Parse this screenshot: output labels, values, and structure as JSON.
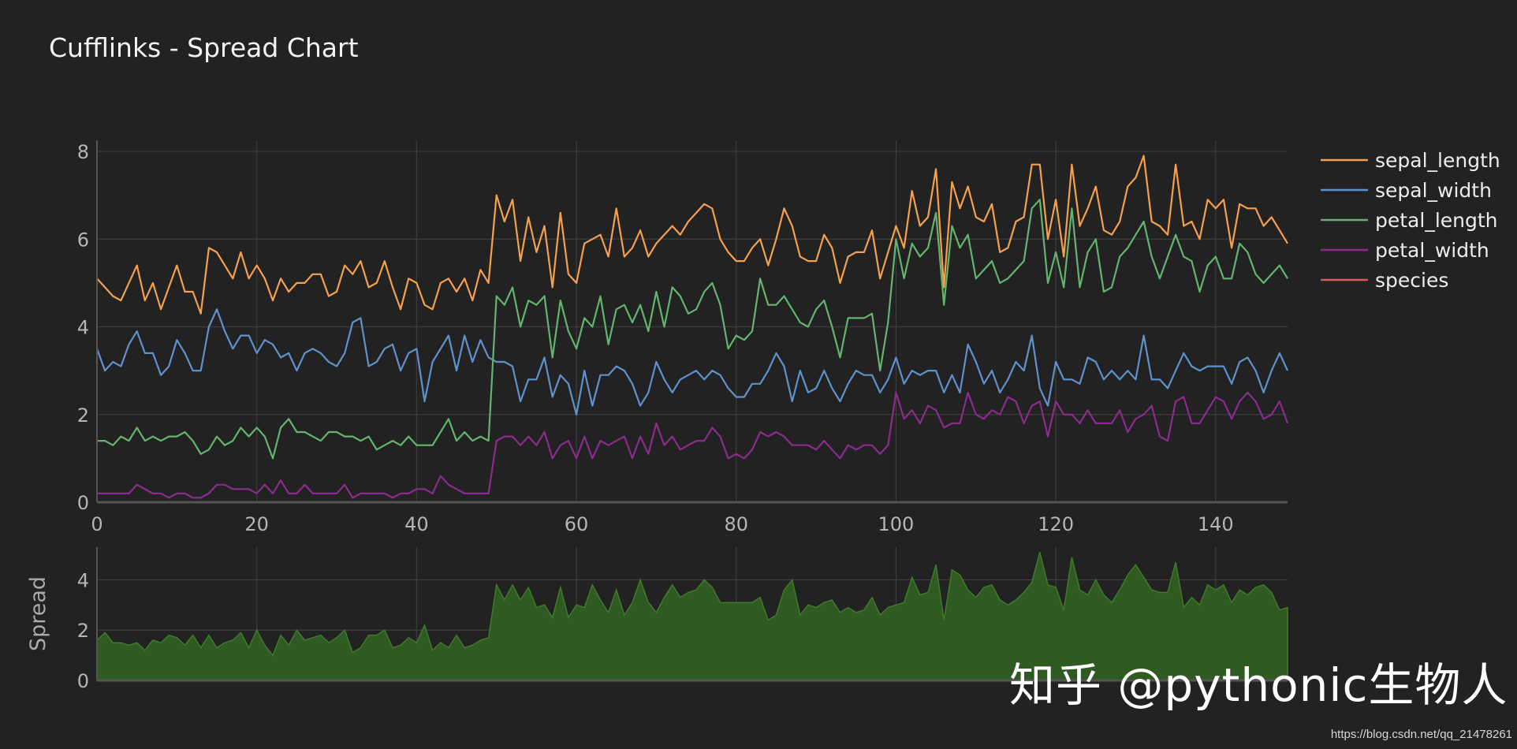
{
  "chart_data": {
    "type": "line",
    "title": "Cufflinks - Spread Chart",
    "xlim": [
      0,
      149
    ],
    "ylim": [
      0,
      8
    ],
    "x_ticks": [
      0,
      20,
      40,
      60,
      80,
      100,
      120,
      140
    ],
    "y_ticks": [
      0,
      2,
      4,
      6,
      8
    ],
    "grid": true,
    "legend_position": "right",
    "series": [
      {
        "name": "sepal_length",
        "color": "#f5a04e",
        "values": [
          5.1,
          4.9,
          4.7,
          4.6,
          5,
          5.4,
          4.6,
          5,
          4.4,
          4.9,
          5.4,
          4.8,
          4.8,
          4.3,
          5.8,
          5.7,
          5.4,
          5.1,
          5.7,
          5.1,
          5.4,
          5.1,
          4.6,
          5.1,
          4.8,
          5,
          5,
          5.2,
          5.2,
          4.7,
          4.8,
          5.4,
          5.2,
          5.5,
          4.9,
          5,
          5.5,
          4.9,
          4.4,
          5.1,
          5,
          4.5,
          4.4,
          5,
          5.1,
          4.8,
          5.1,
          4.6,
          5.3,
          5,
          7,
          6.4,
          6.9,
          5.5,
          6.5,
          5.7,
          6.3,
          4.9,
          6.6,
          5.2,
          5,
          5.9,
          6,
          6.1,
          5.6,
          6.7,
          5.6,
          5.8,
          6.2,
          5.6,
          5.9,
          6.1,
          6.3,
          6.1,
          6.4,
          6.6,
          6.8,
          6.7,
          6,
          5.7,
          5.5,
          5.5,
          5.8,
          6,
          5.4,
          6,
          6.7,
          6.3,
          5.6,
          5.5,
          5.5,
          6.1,
          5.8,
          5,
          5.6,
          5.7,
          5.7,
          6.2,
          5.1,
          5.7,
          6.3,
          5.8,
          7.1,
          6.3,
          6.5,
          7.6,
          4.9,
          7.3,
          6.7,
          7.2,
          6.5,
          6.4,
          6.8,
          5.7,
          5.8,
          6.4,
          6.5,
          7.7,
          7.7,
          6,
          6.9,
          5.6,
          7.7,
          6.3,
          6.7,
          7.2,
          6.2,
          6.1,
          6.4,
          7.2,
          7.4,
          7.9,
          6.4,
          6.3,
          6.1,
          7.7,
          6.3,
          6.4,
          6,
          6.9,
          6.7,
          6.9,
          5.8,
          6.8,
          6.7,
          6.7,
          6.3,
          6.5,
          6.2,
          5.9
        ]
      },
      {
        "name": "sepal_width",
        "color": "#5f92cc",
        "values": [
          3.5,
          3,
          3.2,
          3.1,
          3.6,
          3.9,
          3.4,
          3.4,
          2.9,
          3.1,
          3.7,
          3.4,
          3,
          3,
          4,
          4.4,
          3.9,
          3.5,
          3.8,
          3.8,
          3.4,
          3.7,
          3.6,
          3.3,
          3.4,
          3,
          3.4,
          3.5,
          3.4,
          3.2,
          3.1,
          3.4,
          4.1,
          4.2,
          3.1,
          3.2,
          3.5,
          3.6,
          3,
          3.4,
          3.5,
          2.3,
          3.2,
          3.5,
          3.8,
          3,
          3.8,
          3.2,
          3.7,
          3.3,
          3.2,
          3.2,
          3.1,
          2.3,
          2.8,
          2.8,
          3.3,
          2.4,
          2.9,
          2.7,
          2,
          3,
          2.2,
          2.9,
          2.9,
          3.1,
          3,
          2.7,
          2.2,
          2.5,
          3.2,
          2.8,
          2.5,
          2.8,
          2.9,
          3,
          2.8,
          3,
          2.9,
          2.6,
          2.4,
          2.4,
          2.7,
          2.7,
          3,
          3.4,
          3.1,
          2.3,
          3,
          2.5,
          2.6,
          3,
          2.6,
          2.3,
          2.7,
          3,
          2.9,
          2.9,
          2.5,
          2.8,
          3.3,
          2.7,
          3,
          2.9,
          3,
          3,
          2.5,
          2.9,
          2.5,
          3.6,
          3.2,
          2.7,
          3,
          2.5,
          2.8,
          3.2,
          3,
          3.8,
          2.6,
          2.2,
          3.2,
          2.8,
          2.8,
          2.7,
          3.3,
          3.2,
          2.8,
          3,
          2.8,
          3,
          2.8,
          3.8,
          2.8,
          2.8,
          2.6,
          3,
          3.4,
          3.1,
          3,
          3.1,
          3.1,
          3.1,
          2.7,
          3.2,
          3.3,
          3,
          2.5,
          3,
          3.4,
          3
        ]
      },
      {
        "name": "petal_length",
        "color": "#63b46f",
        "values": [
          1.4,
          1.4,
          1.3,
          1.5,
          1.4,
          1.7,
          1.4,
          1.5,
          1.4,
          1.5,
          1.5,
          1.6,
          1.4,
          1.1,
          1.2,
          1.5,
          1.3,
          1.4,
          1.7,
          1.5,
          1.7,
          1.5,
          1,
          1.7,
          1.9,
          1.6,
          1.6,
          1.5,
          1.4,
          1.6,
          1.6,
          1.5,
          1.5,
          1.4,
          1.5,
          1.2,
          1.3,
          1.4,
          1.3,
          1.5,
          1.3,
          1.3,
          1.3,
          1.6,
          1.9,
          1.4,
          1.6,
          1.4,
          1.5,
          1.4,
          4.7,
          4.5,
          4.9,
          4,
          4.6,
          4.5,
          4.7,
          3.3,
          4.6,
          3.9,
          3.5,
          4.2,
          4,
          4.7,
          3.6,
          4.4,
          4.5,
          4.1,
          4.5,
          3.9,
          4.8,
          4,
          4.9,
          4.7,
          4.3,
          4.4,
          4.8,
          5,
          4.5,
          3.5,
          3.8,
          3.7,
          3.9,
          5.1,
          4.5,
          4.5,
          4.7,
          4.4,
          4.1,
          4,
          4.4,
          4.6,
          4,
          3.3,
          4.2,
          4.2,
          4.2,
          4.3,
          3,
          4.1,
          6,
          5.1,
          5.9,
          5.6,
          5.8,
          6.6,
          4.5,
          6.3,
          5.8,
          6.1,
          5.1,
          5.3,
          5.5,
          5,
          5.1,
          5.3,
          5.5,
          6.7,
          6.9,
          5,
          5.7,
          4.9,
          6.7,
          4.9,
          5.7,
          6,
          4.8,
          4.9,
          5.6,
          5.8,
          6.1,
          6.4,
          5.6,
          5.1,
          5.6,
          6.1,
          5.6,
          5.5,
          4.8,
          5.4,
          5.6,
          5.1,
          5.1,
          5.9,
          5.7,
          5.2,
          5,
          5.2,
          5.4,
          5.1
        ]
      },
      {
        "name": "petal_width",
        "color": "#8b2b8e",
        "values": [
          0.2,
          0.2,
          0.2,
          0.2,
          0.2,
          0.4,
          0.3,
          0.2,
          0.2,
          0.1,
          0.2,
          0.2,
          0.1,
          0.1,
          0.2,
          0.4,
          0.4,
          0.3,
          0.3,
          0.3,
          0.2,
          0.4,
          0.2,
          0.5,
          0.2,
          0.2,
          0.4,
          0.2,
          0.2,
          0.2,
          0.2,
          0.4,
          0.1,
          0.2,
          0.2,
          0.2,
          0.2,
          0.1,
          0.2,
          0.2,
          0.3,
          0.3,
          0.2,
          0.6,
          0.4,
          0.3,
          0.2,
          0.2,
          0.2,
          0.2,
          1.4,
          1.5,
          1.5,
          1.3,
          1.5,
          1.3,
          1.6,
          1,
          1.3,
          1.4,
          1,
          1.5,
          1,
          1.4,
          1.3,
          1.4,
          1.5,
          1,
          1.5,
          1.1,
          1.8,
          1.3,
          1.5,
          1.2,
          1.3,
          1.4,
          1.4,
          1.7,
          1.5,
          1,
          1.1,
          1,
          1.2,
          1.6,
          1.5,
          1.6,
          1.5,
          1.3,
          1.3,
          1.3,
          1.2,
          1.4,
          1.2,
          1,
          1.3,
          1.2,
          1.3,
          1.3,
          1.1,
          1.3,
          2.5,
          1.9,
          2.1,
          1.8,
          2.2,
          2.1,
          1.7,
          1.8,
          1.8,
          2.5,
          2,
          1.9,
          2.1,
          2,
          2.4,
          2.3,
          1.8,
          2.2,
          2.3,
          1.5,
          2.3,
          2,
          2,
          1.8,
          2.1,
          1.8,
          1.8,
          1.8,
          2.1,
          1.6,
          1.9,
          2,
          2.2,
          1.5,
          1.4,
          2.3,
          2.4,
          1.8,
          1.8,
          2.1,
          2.4,
          2.3,
          1.9,
          2.3,
          2.5,
          2.3,
          1.9,
          2,
          2.3,
          1.8
        ]
      },
      {
        "name": "species",
        "color": "#d95b5b",
        "values": []
      }
    ],
    "spread": {
      "ylabel": "Spread",
      "y_ticks": [
        0,
        2,
        4
      ],
      "ylim": [
        0,
        5.3
      ],
      "color": "#2f5a22",
      "line_color": "#3f7a2c"
    }
  },
  "watermark": "知乎 @pythonic生物人",
  "credit": "https://blog.csdn.net/qq_21478261"
}
